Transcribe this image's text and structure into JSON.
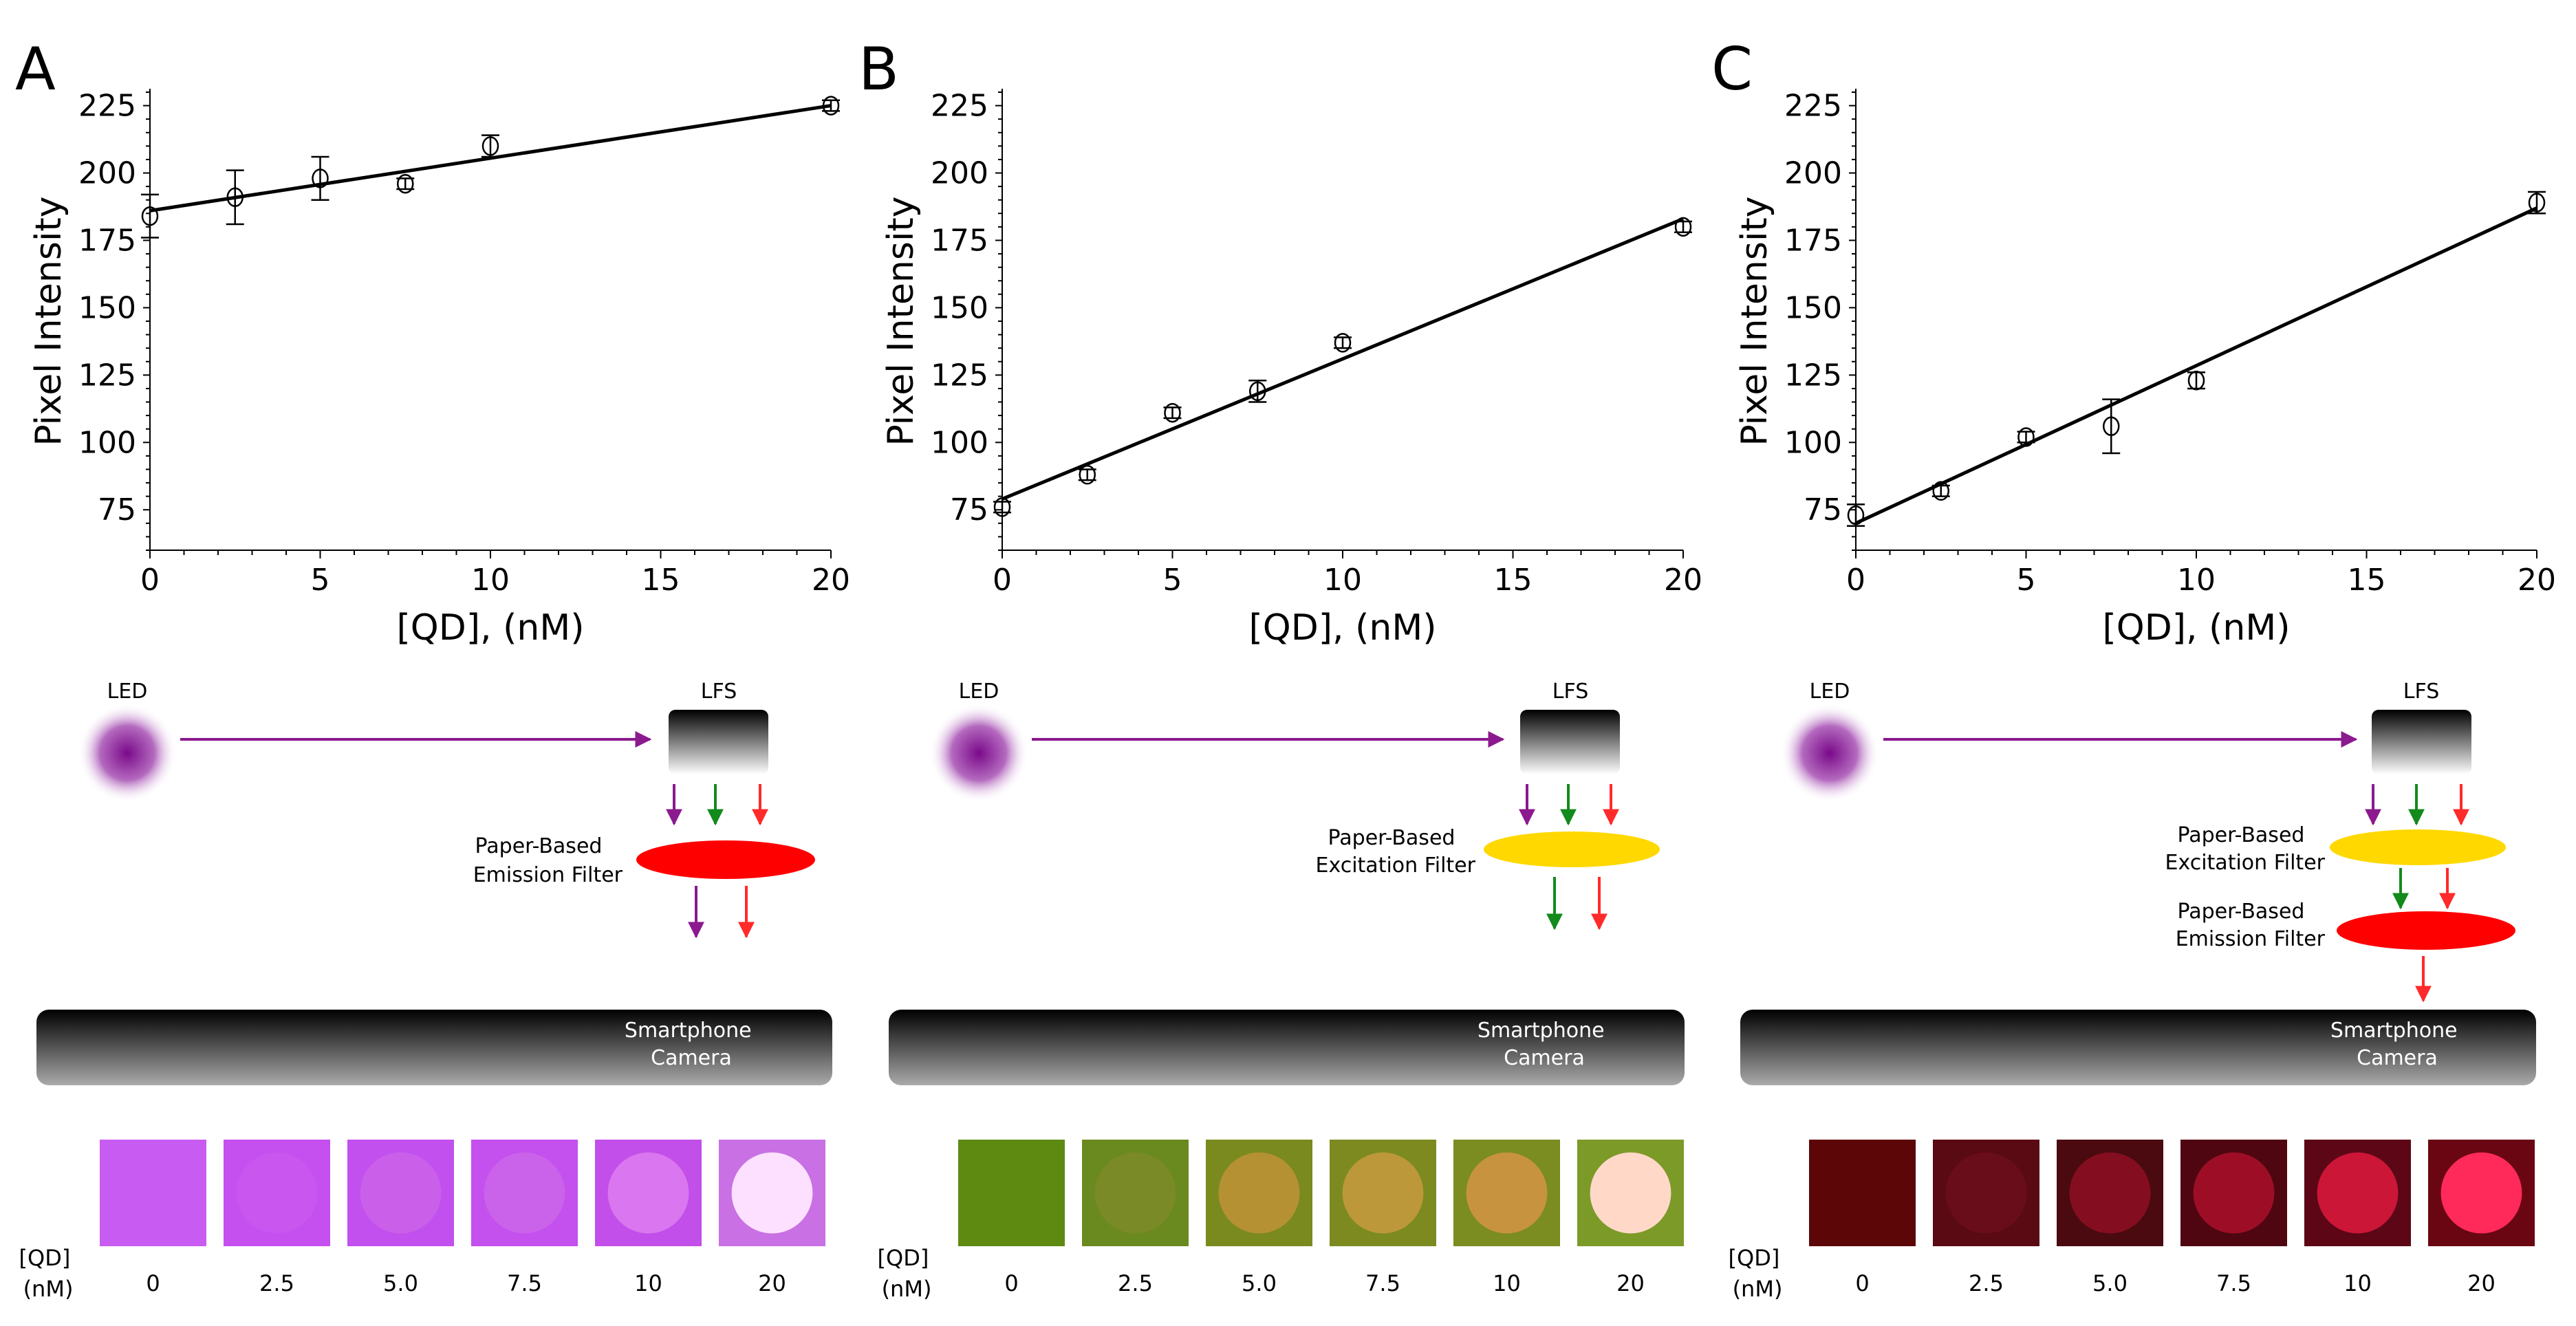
{
  "panels": [
    {
      "letter": "A",
      "chart_data": {
        "type": "scatter",
        "title": "",
        "xlabel": "[QD], (nM)",
        "ylabel": "Pixel Intensity",
        "xlim": [
          0,
          20
        ],
        "ylim": [
          60,
          230
        ],
        "xticks": [
          0,
          5,
          10,
          15,
          20
        ],
        "yticks": [
          75,
          100,
          125,
          150,
          175,
          200,
          225
        ],
        "x": [
          0,
          2.5,
          5,
          7.5,
          10,
          20
        ],
        "y": [
          184,
          191,
          198,
          196,
          210,
          225
        ],
        "error": [
          8,
          10,
          8,
          2,
          4,
          2
        ],
        "fit": {
          "x": [
            0,
            20
          ],
          "y": [
            186,
            225
          ]
        }
      },
      "diagram": {
        "led": "LED",
        "lfs": "LFS",
        "filters": [
          {
            "label": [
              "Paper-Based",
              "Emission Filter"
            ],
            "color": "#ff0000"
          }
        ],
        "camera": [
          "Smartphone",
          "Camera"
        ],
        "tile_colors": [
          "#c85bf2",
          "#c64ff0",
          "#c250ee",
          "#c450ee",
          "#c24fe9",
          "#c870e4"
        ],
        "spot_colors": [
          "#c85bf2",
          "#ca64ee",
          "#cf6be8",
          "#cf6ee8",
          "#e07ff0",
          "#fde0ff"
        ],
        "spot_opacity": [
          0,
          0.35,
          0.6,
          0.6,
          0.8,
          1
        ]
      }
    },
    {
      "letter": "B",
      "chart_data": {
        "type": "scatter",
        "title": "",
        "xlabel": "[QD], (nM)",
        "ylabel": "Pixel Intensity",
        "xlim": [
          0,
          20
        ],
        "ylim": [
          60,
          230
        ],
        "xticks": [
          0,
          5,
          10,
          15,
          20
        ],
        "yticks": [
          75,
          100,
          125,
          150,
          175,
          200,
          225
        ],
        "x": [
          0,
          2.5,
          5,
          7.5,
          10,
          20
        ],
        "y": [
          76,
          88,
          111,
          119,
          137,
          180
        ],
        "error": [
          2,
          2,
          2,
          4,
          2,
          2
        ],
        "fit": {
          "x": [
            0,
            20
          ],
          "y": [
            79,
            183
          ]
        }
      },
      "diagram": {
        "led": "LED",
        "lfs": "LFS",
        "filters": [
          {
            "label": [
              "Paper-Based",
              "Excitation Filter"
            ],
            "color": "#ffd800"
          }
        ],
        "camera": [
          "Smartphone",
          "Camera"
        ],
        "tile_colors": [
          "#5f8a12",
          "#6a8a20",
          "#7a8a1e",
          "#7c8a20",
          "#7b8c20",
          "#7c9a28"
        ],
        "spot_colors": [
          "#5f8a12",
          "#8c8a30",
          "#c4923a",
          "#c99a40",
          "#cf9442",
          "#ffd8c8"
        ],
        "spot_opacity": [
          0,
          0.45,
          0.8,
          0.85,
          0.9,
          1
        ]
      }
    },
    {
      "letter": "C",
      "chart_data": {
        "type": "scatter",
        "title": "",
        "xlabel": "[QD], (nM)",
        "ylabel": "Pixel Intensity",
        "xlim": [
          0,
          20
        ],
        "ylim": [
          60,
          230
        ],
        "xticks": [
          0,
          5,
          10,
          15,
          20
        ],
        "yticks": [
          75,
          100,
          125,
          150,
          175,
          200,
          225
        ],
        "x": [
          0,
          2.5,
          5,
          7.5,
          10,
          20
        ],
        "y": [
          73,
          82,
          102,
          106,
          123,
          189
        ],
        "error": [
          4,
          2,
          2,
          10,
          3,
          4
        ],
        "fit": {
          "x": [
            0,
            20
          ],
          "y": [
            70,
            187
          ]
        }
      },
      "diagram": {
        "led": "LED",
        "lfs": "LFS",
        "filters": [
          {
            "label": [
              "Paper-Based",
              "Excitation Filter"
            ],
            "color": "#ffd800"
          },
          {
            "label": [
              "Paper-Based",
              "Emission Filter"
            ],
            "color": "#ff0000"
          }
        ],
        "camera": [
          "Smartphone",
          "Camera"
        ],
        "tile_colors": [
          "#5c0608",
          "#5a0a12",
          "#4a0a10",
          "#4f0610",
          "#5c0616",
          "#6a0612"
        ],
        "spot_colors": [
          "#5c0608",
          "#7a1022",
          "#9c1028",
          "#b0102c",
          "#d8183c",
          "#ff2a5a"
        ],
        "spot_opacity": [
          0,
          0.5,
          0.7,
          0.8,
          0.9,
          1
        ]
      }
    }
  ],
  "strip": {
    "label": [
      "[QD]",
      "(nM)"
    ],
    "concentrations": [
      "0",
      "2.5",
      "5.0",
      "7.5",
      "10",
      "20"
    ]
  },
  "colors": {
    "led_center": "#7a0a8a",
    "arrow_purple": "#8b1a8e",
    "arrow_green": "#138a1c",
    "arrow_red": "#ff2a2a"
  }
}
